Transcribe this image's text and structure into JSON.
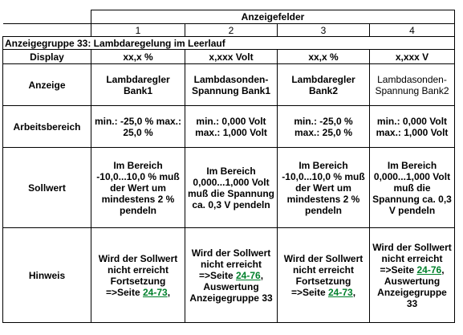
{
  "table": {
    "header": "Anzeigefelder",
    "columns": [
      "1",
      "2",
      "3",
      "4"
    ],
    "group": "Anzeigegruppe 33: Lambdaregelung im Leerlauf",
    "rows": [
      {
        "label": "Display",
        "cells": [
          "xx,x %",
          "x,xxx Volt",
          "xx,x %",
          "x,xxx V"
        ]
      },
      {
        "label": "Anzeige",
        "cells": [
          "Lambdaregler Bank1",
          "Lambdasonden-Spannung Bank1",
          "Lambdaregler Bank2",
          "Lambdasonden-Spannung Bank2"
        ]
      },
      {
        "label": "Arbeitsbereich",
        "cells": [
          "min.: -25,0 % max.: 25,0 %",
          "min.: 0,000 Volt max.: 1,000 Volt",
          "min.: -25,0 % max.: 25,0 %",
          "min.: 0,000 Volt max.: 1,000 Volt"
        ]
      },
      {
        "label": "Sollwert",
        "cells": [
          "Im Bereich -10,0...10,0 % muß der Wert um mindestens 2 % pendeln",
          "Im Bereich 0,000...1,000 Volt muß die Spannung ca. 0,3 V pendeln",
          "Im Bereich -10,0...10,0 % muß der Wert um mindestens 2 % pendeln",
          "Im Bereich 0,000...1,000 Volt muß die Spannung ca. 0,3 V pendeln"
        ]
      },
      {
        "label": "Hinweis",
        "cells": [
          [
            {
              "text": "Wird der Sollwert nicht erreicht Fortsetzung =>Seite "
            },
            {
              "link": "24-73"
            },
            {
              "text": ","
            }
          ],
          [
            {
              "text": "Wird der Sollwert nicht erreicht =>Seite "
            },
            {
              "link": "24-76"
            },
            {
              "text": ", Auswertung Anzeigegruppe 33"
            }
          ],
          [
            {
              "text": "Wird der Sollwert nicht erreicht Fortsetzung =>Seite "
            },
            {
              "link": "24-73"
            },
            {
              "text": ","
            }
          ],
          [
            {
              "text": "Wird der Sollwert nicht erreicht =>Seite "
            },
            {
              "link": "24-76"
            },
            {
              "text": ", Auswertung Anzeigegruppe 33"
            }
          ]
        ]
      }
    ]
  }
}
